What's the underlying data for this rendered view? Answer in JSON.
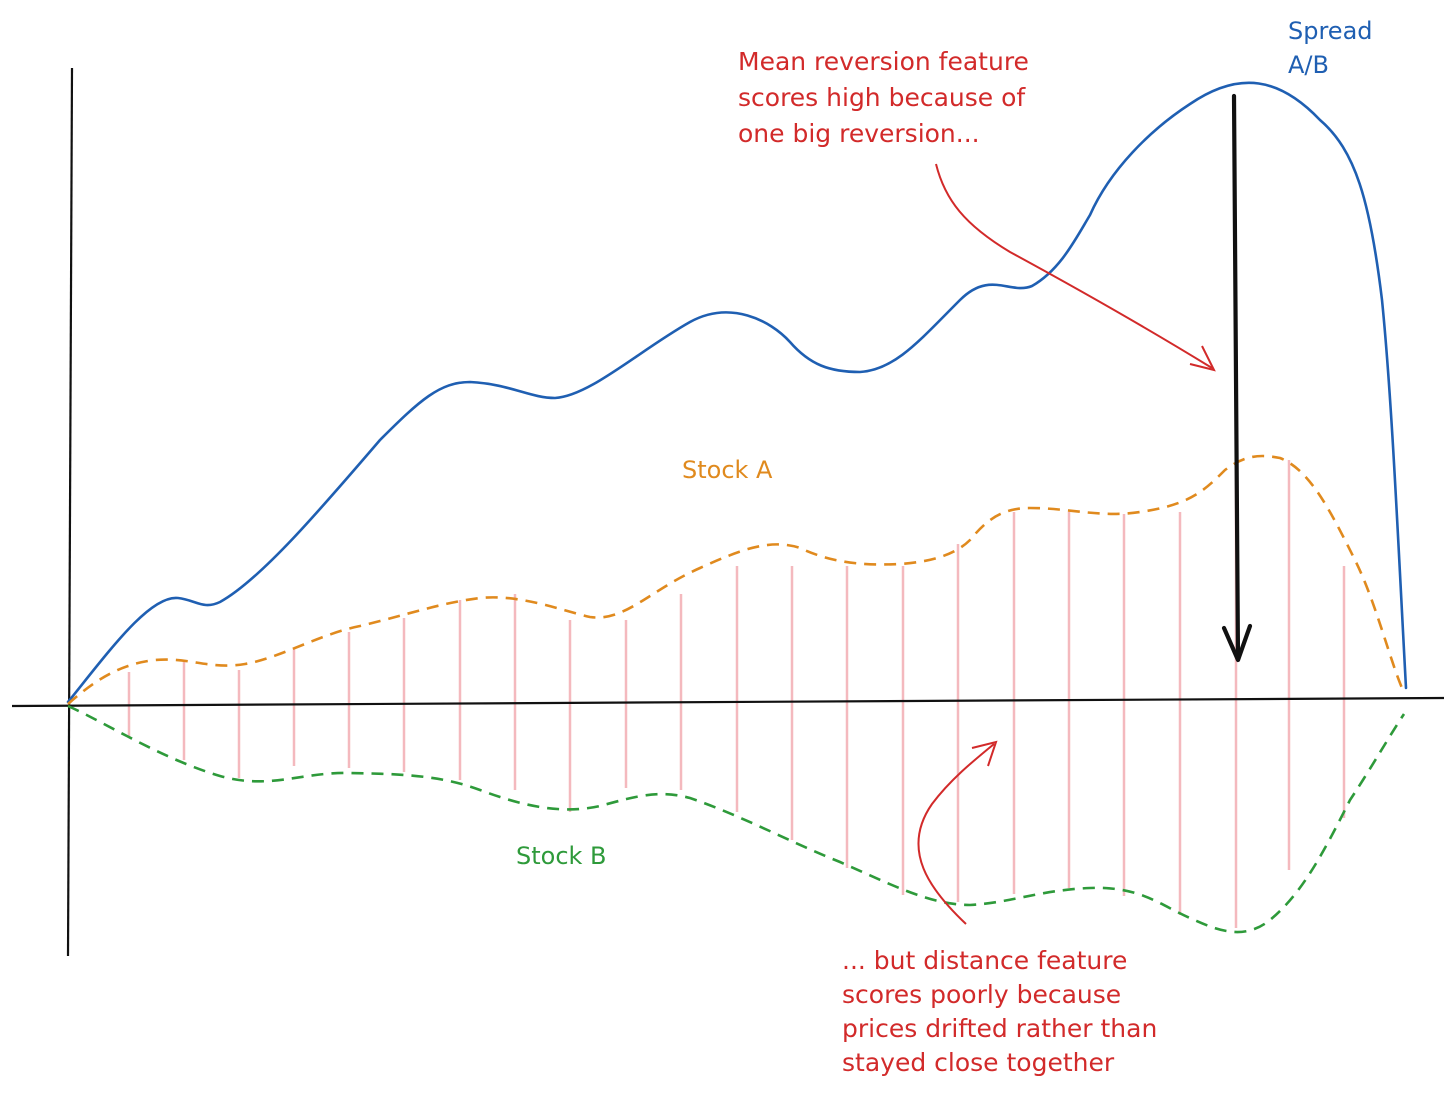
{
  "labels": {
    "spread": "Spread\nA/B",
    "stock_a": "Stock A",
    "stock_b": "Stock B",
    "note_top": "Mean reversion feature\nscores high because of\none big reversion...",
    "note_bottom": "... but distance feature\nscores poorly because\nprices drifted rather than\nstayed close together"
  },
  "colors": {
    "spread": "#1f5fb2",
    "stock_a": "#e08a1e",
    "stock_b": "#2e9a3a",
    "annotation": "#d22a2a",
    "distance_bars": "#f4b9be",
    "axes": "#111111"
  }
}
